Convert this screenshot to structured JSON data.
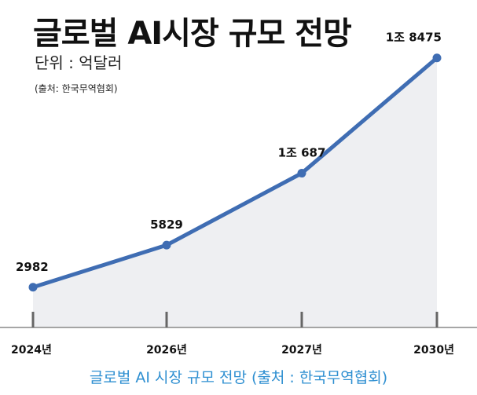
{
  "header": {
    "title": "글로벌 AI시장 규모 전망",
    "unit": "단위 : 억달러",
    "source": "(출처: 한국무역협회)"
  },
  "caption": "글로벌 AI 시장 규모 전망 (출처 : 한국무역협회)",
  "colors": {
    "line": "#3f6db3",
    "area": "#eeeff2",
    "axis": "#888888",
    "caption": "#2e8fd1"
  },
  "chart_data": {
    "type": "area",
    "title": "글로벌 AI시장 규모 전망",
    "ylabel": "단위 : 억달러",
    "categories": [
      "2024년",
      "2026년",
      "2027년",
      "2030년"
    ],
    "values": [
      2982,
      5829,
      10687,
      18475
    ],
    "data_labels": [
      "2982",
      "5829",
      "1조 687",
      "1조 8475"
    ],
    "ylim": [
      0,
      20000
    ],
    "grid": false,
    "legend": "none"
  }
}
